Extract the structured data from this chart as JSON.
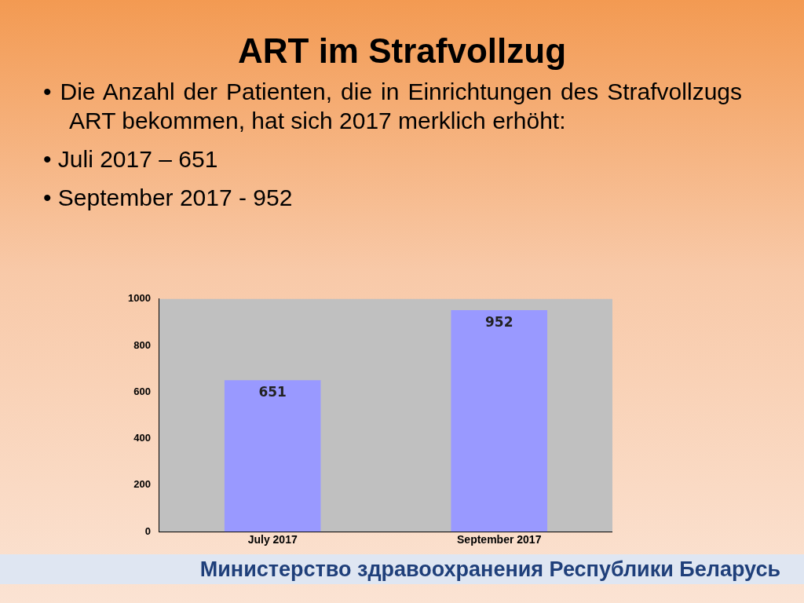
{
  "chart_data": {
    "type": "bar",
    "title": "ART im Strafvollzug",
    "annotations": [
      "• Die Anzahl der Patienten, die in Einrichtungen des Strafvollzugs ART bekommen, hat sich 2017 merklich erhöht:",
      "• Juli 2017 – 651",
      "• September 2017 - 952",
      "Министерство здравоохранения Республики Беларусь"
    ],
    "categories": [
      "July 2017",
      "September 2017"
    ],
    "values": [
      651,
      952
    ],
    "color": "#9999ff",
    "ylim": [
      0,
      1000
    ],
    "yticks": [
      0,
      200,
      400,
      600,
      800,
      1000
    ],
    "grid": false,
    "legend": false,
    "data_labels": true
  }
}
